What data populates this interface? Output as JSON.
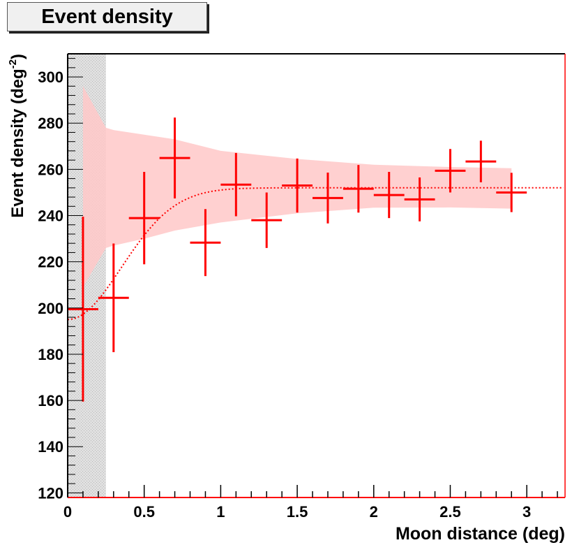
{
  "title": "Event density",
  "chart_data": {
    "type": "scatter",
    "title": "Event density",
    "xlabel": "Moon distance (deg)",
    "ylabel": "Event density (deg",
    "ylabel_sup": "-2",
    "ylabel_end": ")",
    "xlim": [
      0,
      3.25
    ],
    "ylim": [
      118,
      310
    ],
    "xticks": [
      "0",
      "0.5",
      "1",
      "1.5",
      "2",
      "2.5",
      "3"
    ],
    "xtick_values": [
      0,
      0.5,
      1,
      1.5,
      2,
      2.5,
      3
    ],
    "yticks": [
      "120",
      "140",
      "160",
      "180",
      "200",
      "220",
      "240",
      "260",
      "280",
      "300"
    ],
    "ytick_values": [
      120,
      140,
      160,
      180,
      200,
      220,
      240,
      260,
      280,
      300
    ],
    "grid": false,
    "colors": {
      "points": "#ff0000",
      "band": "#ffc8c8",
      "excluded_region": "#e0e0e0",
      "fit": "#ff0000"
    },
    "points": [
      {
        "x": 0.1,
        "y": 199.5,
        "xerr": 0.1,
        "yerr": 40
      },
      {
        "x": 0.3,
        "y": 204.4,
        "xerr": 0.1,
        "yerr": 23.5
      },
      {
        "x": 0.5,
        "y": 238.9,
        "xerr": 0.1,
        "yerr": 20
      },
      {
        "x": 0.7,
        "y": 264.9,
        "xerr": 0.1,
        "yerr": 17.5
      },
      {
        "x": 0.9,
        "y": 228.3,
        "xerr": 0.1,
        "yerr": 14.5
      },
      {
        "x": 1.1,
        "y": 253.4,
        "xerr": 0.1,
        "yerr": 13.7
      },
      {
        "x": 1.3,
        "y": 238.0,
        "xerr": 0.1,
        "yerr": 12
      },
      {
        "x": 1.5,
        "y": 253.0,
        "xerr": 0.1,
        "yerr": 11.7
      },
      {
        "x": 1.7,
        "y": 247.6,
        "xerr": 0.1,
        "yerr": 11
      },
      {
        "x": 1.9,
        "y": 251.6,
        "xerr": 0.1,
        "yerr": 10.3
      },
      {
        "x": 2.1,
        "y": 248.9,
        "xerr": 0.1,
        "yerr": 10
      },
      {
        "x": 2.3,
        "y": 247.0,
        "xerr": 0.1,
        "yerr": 9.5
      },
      {
        "x": 2.5,
        "y": 259.4,
        "xerr": 0.1,
        "yerr": 9.4
      },
      {
        "x": 2.7,
        "y": 263.4,
        "xerr": 0.1,
        "yerr": 9
      },
      {
        "x": 2.9,
        "y": 250.0,
        "xerr": 0.1,
        "yerr": 8.5
      }
    ],
    "band": {
      "x": [
        0.1,
        0.25,
        0.3,
        0.5,
        0.7,
        1.0,
        1.5,
        2.0,
        2.5,
        2.9
      ],
      "upper": [
        296,
        278,
        277,
        275,
        273,
        268,
        264.5,
        262,
        261,
        260.5
      ],
      "lower": [
        209,
        226,
        227,
        230,
        233.5,
        237,
        241,
        243.4,
        243.5,
        243
      ]
    },
    "excluded_region": {
      "x0": 0,
      "x1": 0.25
    },
    "fit": {
      "style": "dotted",
      "baseline": 252,
      "depth": 57,
      "sigma": 0.35,
      "x_range": [
        0,
        3.25
      ]
    }
  }
}
